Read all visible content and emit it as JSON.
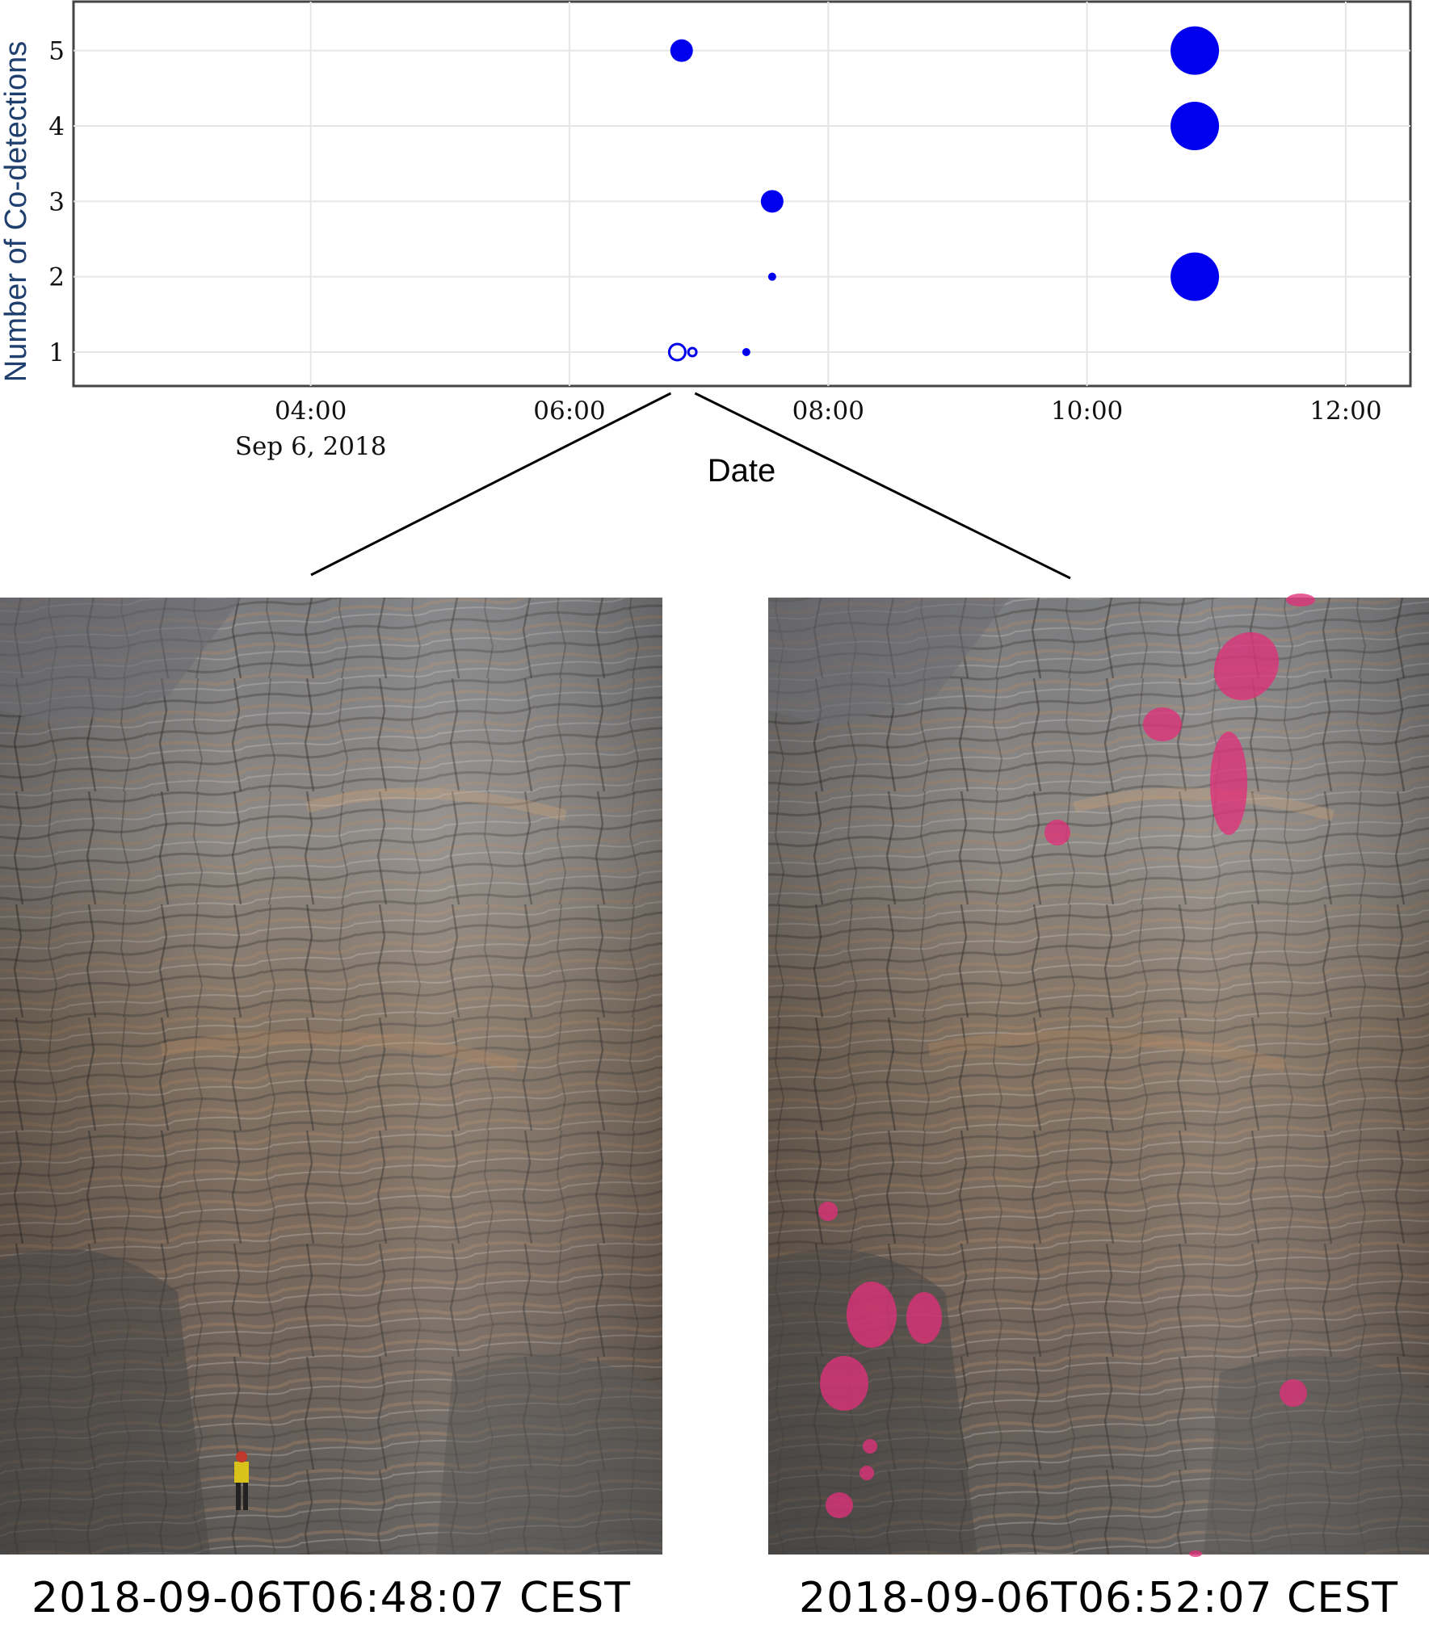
{
  "chart_data": {
    "type": "scatter",
    "xlabel": "Date",
    "ylabel": "Number of Co-detections",
    "x_ticks": [
      {
        "value": "2018-09-06T04:00",
        "label": "04:00",
        "sublabel": "Sep 6, 2018"
      },
      {
        "value": "2018-09-06T06:00",
        "label": "06:00",
        "sublabel": ""
      },
      {
        "value": "2018-09-06T08:00",
        "label": "08:00",
        "sublabel": ""
      },
      {
        "value": "2018-09-06T10:00",
        "label": "10:00",
        "sublabel": ""
      },
      {
        "value": "2018-09-06T12:00",
        "label": "12:00",
        "sublabel": ""
      }
    ],
    "y_ticks": [
      1,
      2,
      3,
      4,
      5
    ],
    "xlim": [
      "2018-09-06T02:10",
      "2018-09-06T12:30"
    ],
    "ylim": [
      0.55,
      5.65
    ],
    "grid": true,
    "marker_color": "#0000ee",
    "points": [
      {
        "x": "2018-09-06T06:52",
        "y": 5,
        "size": "medium",
        "style": "filled"
      },
      {
        "x": "2018-09-06T07:34",
        "y": 3,
        "size": "medium",
        "style": "filled"
      },
      {
        "x": "2018-09-06T07:34",
        "y": 2,
        "size": "small",
        "style": "filled"
      },
      {
        "x": "2018-09-06T06:50",
        "y": 1,
        "size": "medium-small",
        "style": "open"
      },
      {
        "x": "2018-09-06T06:57",
        "y": 1,
        "size": "small",
        "style": "open"
      },
      {
        "x": "2018-09-06T07:22",
        "y": 1,
        "size": "small",
        "style": "filled"
      },
      {
        "x": "2018-09-06T10:50",
        "y": 5,
        "size": "large",
        "style": "filled"
      },
      {
        "x": "2018-09-06T10:50",
        "y": 4,
        "size": "large",
        "style": "filled"
      },
      {
        "x": "2018-09-06T10:50",
        "y": 2,
        "size": "large",
        "style": "filled"
      }
    ],
    "zoom_from": "2018-09-06T06:50"
  },
  "photos": [
    {
      "caption": "2018-09-06T06:48:07 CEST",
      "highlight_color": "#e0307a"
    },
    {
      "caption": "2018-09-06T06:52:07 CEST",
      "highlight_color": "#e0307a"
    }
  ]
}
